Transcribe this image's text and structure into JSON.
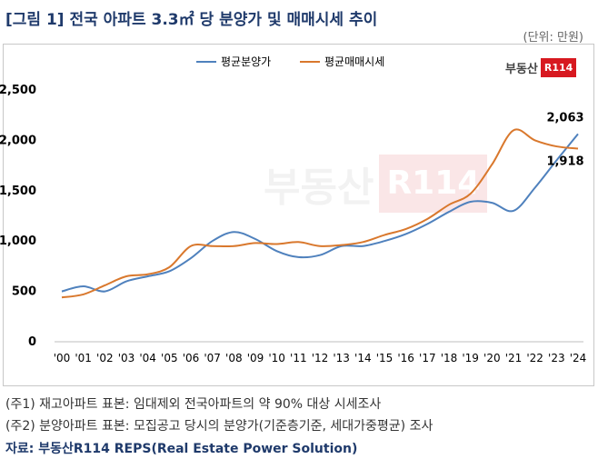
{
  "header": {
    "title": "[그림 1] 전국 아파트 3.3㎡ 당 분양가 및 매매시세 추이",
    "unit": "(단위: 만원)"
  },
  "logo": {
    "text": "부동산",
    "box": "R114"
  },
  "notes": [
    "(주1) 재고아파트 표본: 임대제외 전국아파트의 약 90% 대상 시세조사",
    "(주2) 분양아파트 표본: 모집공고 당시의 분양가(기준층기준, 세대가중평균) 조사"
  ],
  "source": "자료: 부동산R114 REPS(Real Estate Power Solution)",
  "colors": {
    "sale": "#4f81bd",
    "market": "#d9782d"
  },
  "chart_data": {
    "type": "line",
    "categories": [
      "'00",
      "'01",
      "'02",
      "'03",
      "'04",
      "'05",
      "'06",
      "'07",
      "'08",
      "'09",
      "'10",
      "'11",
      "'12",
      "'13",
      "'14",
      "'15",
      "'16",
      "'17",
      "'18",
      "'19",
      "'20",
      "'21",
      "'22",
      "'23",
      "'24"
    ],
    "series": [
      {
        "name": "평균분양가",
        "color": "#4f81bd",
        "values": [
          500,
          550,
          500,
          600,
          650,
          700,
          830,
          1000,
          1090,
          1020,
          900,
          840,
          860,
          950,
          950,
          1000,
          1070,
          1170,
          1290,
          1390,
          1380,
          1300,
          1530,
          1800,
          2063
        ]
      },
      {
        "name": "평균매매시세",
        "color": "#d9782d",
        "values": [
          440,
          470,
          560,
          650,
          670,
          740,
          950,
          950,
          950,
          980,
          970,
          990,
          950,
          960,
          990,
          1060,
          1120,
          1220,
          1360,
          1470,
          1760,
          2100,
          2000,
          1940,
          1918
        ]
      }
    ],
    "ylim": [
      0,
      2500
    ],
    "yticks": [
      0,
      500,
      1000,
      1500,
      2000,
      2500
    ],
    "ytick_labels": [
      "0",
      "500",
      "1,000",
      "1,500",
      "2,000",
      "2,500"
    ],
    "annotations": [
      {
        "text": "2,063",
        "series": 0,
        "index": 24
      },
      {
        "text": "1,918",
        "series": 1,
        "index": 24
      }
    ],
    "legend": "top-center",
    "grid": false
  }
}
